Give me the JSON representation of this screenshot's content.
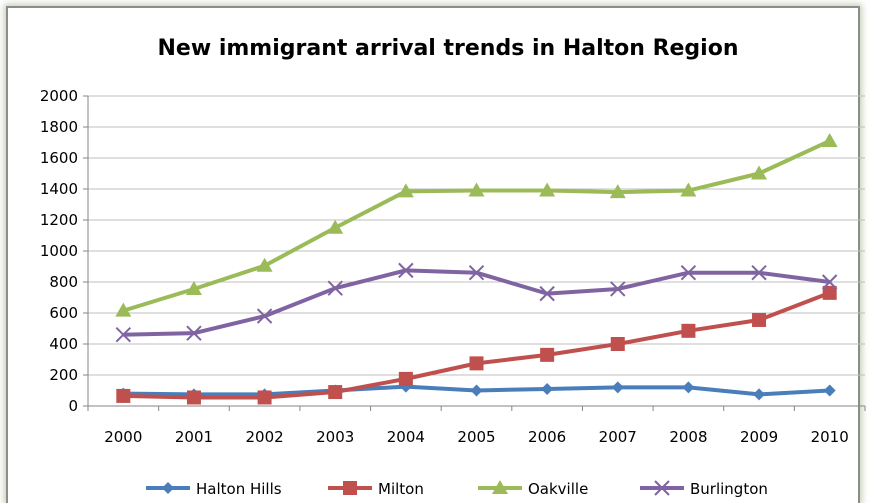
{
  "chart_data": {
    "type": "line",
    "title": "New immigrant arrival trends in Halton Region",
    "xlabel": "",
    "ylabel": "",
    "x": [
      "2000",
      "2001",
      "2002",
      "2003",
      "2004",
      "2005",
      "2006",
      "2007",
      "2008",
      "2009",
      "2010"
    ],
    "ylim": [
      0,
      2000
    ],
    "yticks": [
      "0",
      "200",
      "400",
      "600",
      "800",
      "1000",
      "1200",
      "1400",
      "1600",
      "1800",
      "2000"
    ],
    "grid": true,
    "legend": "bottom",
    "series": [
      {
        "name": "Halton Hills",
        "color": "#4a7ebb",
        "marker": "diamond",
        "values": [
          80,
          75,
          75,
          100,
          125,
          100,
          110,
          120,
          120,
          75,
          100
        ]
      },
      {
        "name": "Milton",
        "color": "#c0504d",
        "marker": "square",
        "values": [
          65,
          55,
          55,
          90,
          175,
          275,
          330,
          400,
          485,
          555,
          730
        ]
      },
      {
        "name": "Oakville",
        "color": "#9bbb59",
        "marker": "triangle",
        "values": [
          615,
          755,
          905,
          1150,
          1385,
          1390,
          1390,
          1380,
          1390,
          1500,
          1710
        ]
      },
      {
        "name": "Burlington",
        "color": "#8064a2",
        "marker": "x",
        "values": [
          460,
          470,
          580,
          760,
          875,
          860,
          725,
          755,
          860,
          860,
          800
        ]
      }
    ]
  }
}
